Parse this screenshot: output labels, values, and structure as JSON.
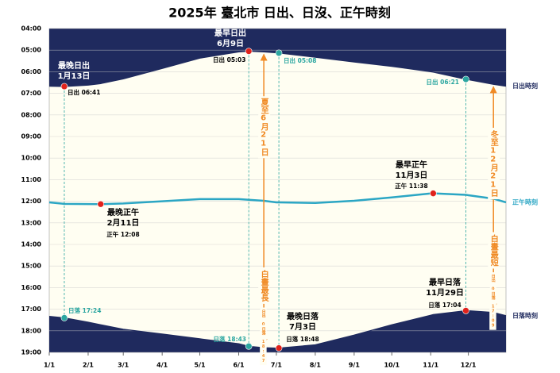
{
  "chart_data": {
    "type": "line",
    "title": "2025年 臺北市 日出、日沒、正午時刻",
    "x": [
      0,
      12,
      31,
      41,
      59,
      90,
      120,
      151,
      159,
      171,
      181,
      183,
      212,
      243,
      273,
      304,
      306,
      332,
      334,
      354,
      364
    ],
    "xlim": [
      0,
      364
    ],
    "xticks": [
      {
        "value": 0,
        "label": "1/1"
      },
      {
        "value": 31,
        "label": "2/1"
      },
      {
        "value": 59,
        "label": "3/1"
      },
      {
        "value": 90,
        "label": "4/1"
      },
      {
        "value": 120,
        "label": "5/1"
      },
      {
        "value": 151,
        "label": "6/1"
      },
      {
        "value": 181,
        "label": "7/1"
      },
      {
        "value": 212,
        "label": "8/1"
      },
      {
        "value": 243,
        "label": "9/1"
      },
      {
        "value": 273,
        "label": "10/1"
      },
      {
        "value": 304,
        "label": "11/1"
      },
      {
        "value": 334,
        "label": "12/1"
      }
    ],
    "ylim": [
      19,
      4
    ],
    "yticks": [
      {
        "value": 4,
        "label": "04:00"
      },
      {
        "value": 5,
        "label": "05:00"
      },
      {
        "value": 6,
        "label": "06:00"
      },
      {
        "value": 7,
        "label": "07:00"
      },
      {
        "value": 8,
        "label": "08:00"
      },
      {
        "value": 9,
        "label": "09:00"
      },
      {
        "value": 10,
        "label": "10:00"
      },
      {
        "value": 11,
        "label": "11:00"
      },
      {
        "value": 12,
        "label": "12:00"
      },
      {
        "value": 13,
        "label": "13:00"
      },
      {
        "value": 14,
        "label": "14:00"
      },
      {
        "value": 15,
        "label": "15:00"
      },
      {
        "value": 16,
        "label": "16:00"
      },
      {
        "value": 17,
        "label": "17:00"
      },
      {
        "value": 18,
        "label": "18:00"
      },
      {
        "value": 19,
        "label": "19:00"
      }
    ],
    "grid": true,
    "series": [
      {
        "name": "日出時刻",
        "color": "#1f2a5e",
        "fill": "top",
        "values": [
          6.67,
          6.683,
          6.62,
          6.55,
          6.33,
          5.85,
          5.37,
          5.08,
          5.05,
          5.083,
          5.12,
          5.133,
          5.33,
          5.55,
          5.75,
          6.0,
          6.02,
          6.35,
          6.37,
          6.583,
          6.67
        ]
      },
      {
        "name": "正午時刻",
        "color": "#2ba6c4",
        "values": [
          12.05,
          12.12,
          12.13,
          12.133,
          12.1,
          12.0,
          11.9,
          11.9,
          11.93,
          11.98,
          12.05,
          12.05,
          12.08,
          11.98,
          11.82,
          11.64,
          11.633,
          11.7,
          11.72,
          11.88,
          12.05
        ]
      },
      {
        "name": "日落時刻",
        "color": "#1f2a5e",
        "fill": "bottom",
        "values": [
          17.33,
          17.4,
          17.6,
          17.72,
          17.93,
          18.15,
          18.37,
          18.6,
          18.717,
          18.783,
          18.8,
          18.8,
          18.65,
          18.2,
          17.72,
          17.28,
          17.25,
          17.067,
          17.067,
          17.15,
          17.3
        ]
      }
    ],
    "annotations": [
      {
        "x": 12,
        "y": 6.683,
        "color": "#e0231c",
        "title": [
          "最晚日出",
          "1月13日"
        ],
        "label": "日出 06:41"
      },
      {
        "x": 159,
        "y": 5.05,
        "color": "#e0231c",
        "title": [
          "最早日出",
          "6月9日"
        ],
        "label": "日出 05:03"
      },
      {
        "x": 41,
        "y": 12.133,
        "color": "#e0231c",
        "title": [
          "最晚正午",
          "2月11日"
        ],
        "label": "正午 12:08"
      },
      {
        "x": 306,
        "y": 11.633,
        "color": "#e0231c",
        "title": [
          "最早正午",
          "11月3日"
        ],
        "label": "正午 11:38"
      },
      {
        "x": 332,
        "y": 17.067,
        "color": "#e0231c",
        "title": [
          "最早日落",
          "11月29日"
        ],
        "label": "日落 17:04"
      },
      {
        "x": 183,
        "y": 18.8,
        "color": "#e0231c",
        "title": [
          "最晚日落",
          "7月3日"
        ],
        "label": "日落 18:48"
      },
      {
        "x": 183,
        "y": 5.133,
        "color": "#2ba6a0",
        "label": "日出 05:08"
      },
      {
        "x": 332,
        "y": 6.35,
        "color": "#2ba6a0",
        "label": "日出 06:21"
      },
      {
        "x": 12,
        "y": 17.4,
        "color": "#2ba6a0",
        "label": "日落 17:24"
      },
      {
        "x": 159,
        "y": 18.717,
        "color": "#2ba6a0",
        "label": "日落 18:43"
      }
    ],
    "solstices": [
      {
        "x": 171,
        "color": "#f08a24",
        "text": "夏至6月21日",
        "note": "白晝最長",
        "detail": [
          "日出 05:05",
          "日落 18:47"
        ]
      },
      {
        "x": 354,
        "color": "#f08a24",
        "text": "冬至12月21日",
        "note": "白晝最短",
        "detail": [
          "日出 06:35",
          "日落 17:09"
        ]
      }
    ]
  }
}
